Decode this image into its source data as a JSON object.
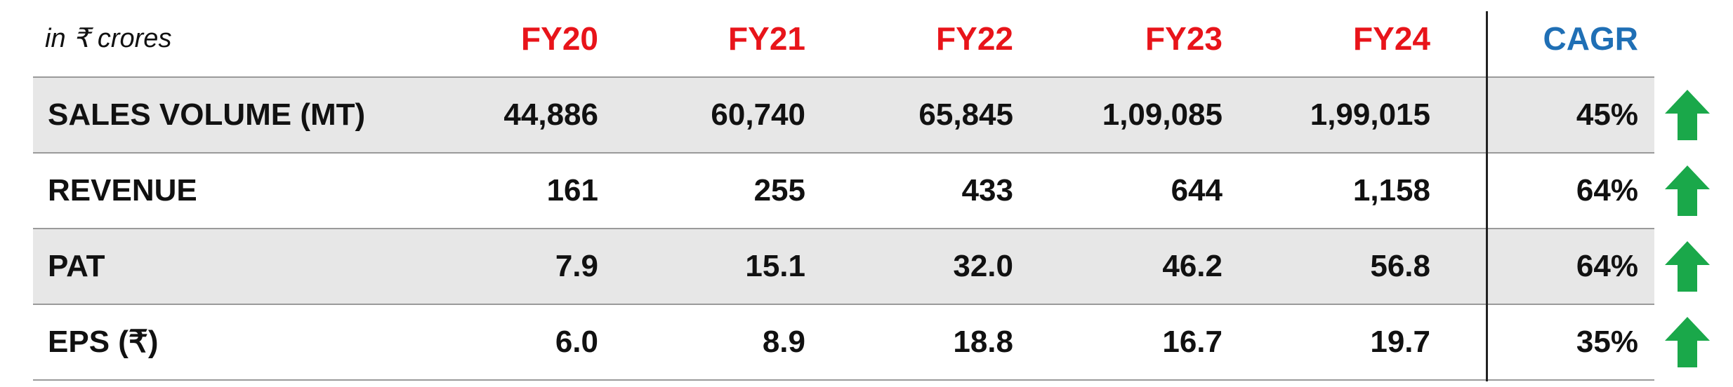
{
  "header": {
    "unit": "in ₹ crores",
    "columns": [
      "FY20",
      "FY21",
      "FY22",
      "FY23",
      "FY24"
    ],
    "cagr": "CAGR"
  },
  "table": {
    "rows": [
      {
        "label": "SALES VOLUME (MT)",
        "values": [
          "44,886",
          "60,740",
          "65,845",
          "1,09,085",
          "1,99,015"
        ],
        "cagr": "45%"
      },
      {
        "label": "REVENUE",
        "values": [
          "161",
          "255",
          "433",
          "644",
          "1,158"
        ],
        "cagr": "64%"
      },
      {
        "label": "PAT",
        "values": [
          "7.9",
          "15.1",
          "32.0",
          "46.2",
          "56.8"
        ],
        "cagr": "64%"
      },
      {
        "label": "EPS (₹)",
        "values": [
          "6.0",
          "8.9",
          "18.8",
          "16.7",
          "19.7"
        ],
        "cagr": "35%"
      }
    ]
  }
}
